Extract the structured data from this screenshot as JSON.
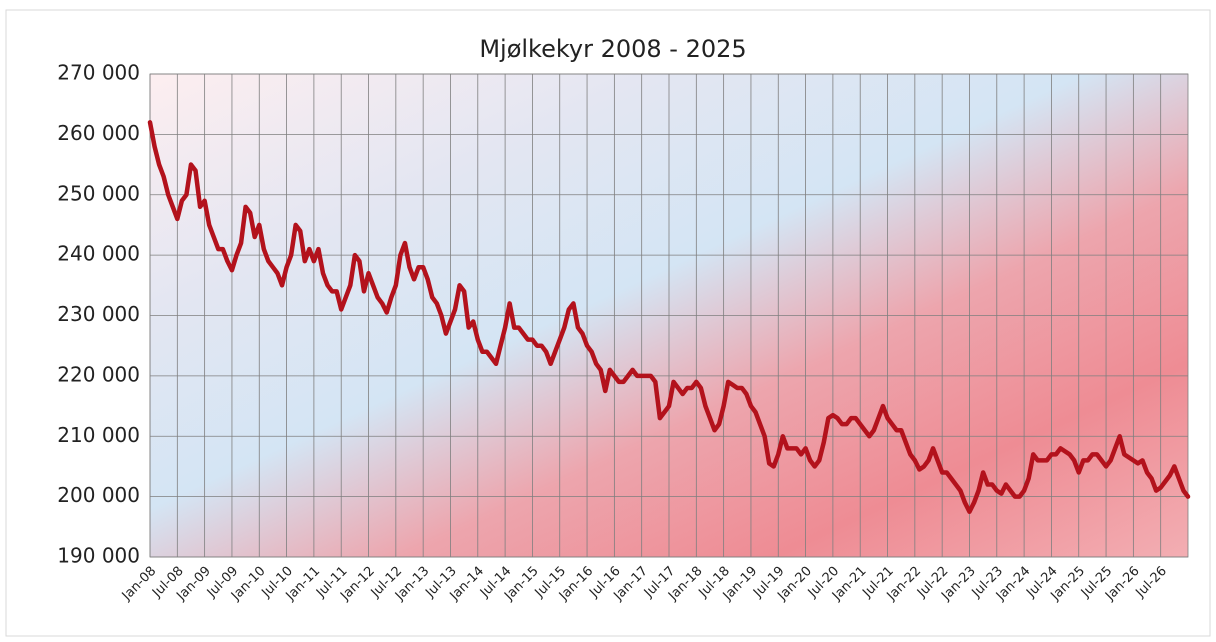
{
  "chart_data": {
    "type": "line",
    "title": "Mjølkekyr 2008 - 2025",
    "color": "#b3121c",
    "grid": true,
    "ylim": [
      190000,
      270000
    ],
    "yticks": [
      {
        "value": 190000,
        "label": "190 000"
      },
      {
        "value": 200000,
        "label": "200 000"
      },
      {
        "value": 210000,
        "label": "210 000"
      },
      {
        "value": 220000,
        "label": "220 000"
      },
      {
        "value": 230000,
        "label": "230 000"
      },
      {
        "value": 240000,
        "label": "240 000"
      },
      {
        "value": 250000,
        "label": "250 000"
      },
      {
        "value": 260000,
        "label": "260 000"
      },
      {
        "value": 270000,
        "label": "270 000"
      }
    ],
    "categories": [
      "Jan-08",
      null,
      null,
      null,
      null,
      null,
      "Jul-08",
      null,
      null,
      null,
      null,
      null,
      "Jan-09",
      null,
      null,
      null,
      null,
      null,
      "Jul-09",
      null,
      null,
      null,
      null,
      null,
      "Jan-10",
      null,
      null,
      null,
      null,
      null,
      "Jul-10",
      null,
      null,
      null,
      null,
      null,
      "Jan-11",
      null,
      null,
      null,
      null,
      null,
      "Jul-11",
      null,
      null,
      null,
      null,
      null,
      "Jan-12",
      null,
      null,
      null,
      null,
      null,
      "Jul-12",
      null,
      null,
      null,
      null,
      null,
      "Jan-13",
      null,
      null,
      null,
      null,
      null,
      "Jul-13",
      null,
      null,
      null,
      null,
      null,
      "Jan-14",
      null,
      null,
      null,
      null,
      null,
      "Jul-14",
      null,
      null,
      null,
      null,
      null,
      "Jan-15",
      null,
      null,
      null,
      null,
      null,
      "Jul-15",
      null,
      null,
      null,
      null,
      null,
      "Jan-16",
      null,
      null,
      null,
      null,
      null,
      "Jul-16",
      null,
      null,
      null,
      null,
      null,
      "Jan-17",
      null,
      null,
      null,
      null,
      null,
      "Jul-17",
      null,
      null,
      null,
      null,
      null,
      "Jan-18",
      null,
      null,
      null,
      null,
      null,
      "Jul-18",
      null,
      null,
      null,
      null,
      null,
      "Jan-19",
      null,
      null,
      null,
      null,
      null,
      "Jul-19",
      null,
      null,
      null,
      null,
      null,
      "Jan-20",
      null,
      null,
      null,
      null,
      null,
      "Jul-20",
      null,
      null,
      null,
      null,
      null,
      "Jan-21",
      null,
      null,
      null,
      null,
      null,
      "Jul-21",
      null,
      null,
      null,
      null,
      null,
      "Jan-22",
      null,
      null,
      null,
      null,
      null,
      "Jul-22",
      null,
      null,
      null,
      null,
      null,
      "Jan-23",
      null,
      null,
      null,
      null,
      null,
      "Jul-23",
      null,
      null,
      null,
      null,
      null,
      "Jan-24",
      null,
      null,
      null,
      null,
      null,
      "Jul-24",
      null,
      null,
      null,
      null,
      null,
      "Jan-25",
      null,
      null,
      null,
      null,
      null,
      "Jul-25",
      null,
      null,
      null,
      null,
      null,
      "Jan-26",
      null,
      null,
      null,
      null,
      null,
      "Jul-26",
      null,
      null,
      null,
      null,
      null,
      null
    ],
    "values": [
      262000,
      258000,
      255000,
      253000,
      250000,
      248000,
      246000,
      249000,
      250000,
      255000,
      254000,
      248000,
      249000,
      245000,
      243000,
      241000,
      241000,
      239000,
      237500,
      240000,
      242000,
      248000,
      247000,
      243000,
      245000,
      241000,
      239000,
      238000,
      237000,
      235000,
      238000,
      240000,
      245000,
      244000,
      239000,
      241000,
      239000,
      241000,
      237000,
      235000,
      234000,
      234000,
      231000,
      233000,
      235000,
      240000,
      239000,
      234000,
      237000,
      235000,
      233000,
      232000,
      230500,
      233000,
      235000,
      240000,
      242000,
      238000,
      236000,
      238000,
      238000,
      236000,
      233000,
      232000,
      230000,
      227000,
      229000,
      231000,
      235000,
      234000,
      228000,
      229000,
      226000,
      224000,
      224000,
      223000,
      222000,
      225000,
      228000,
      232000,
      228000,
      228000,
      227000,
      226000,
      226000,
      225000,
      225000,
      224000,
      222000,
      224000,
      226000,
      228000,
      231000,
      232000,
      228000,
      227000,
      225000,
      224000,
      222000,
      221000,
      217500,
      221000,
      220000,
      219000,
      219000,
      220000,
      221000,
      220000,
      220000,
      220000,
      220000,
      219000,
      213000,
      214000,
      215000,
      219000,
      218000,
      217000,
      218000,
      218000,
      219000,
      218000,
      215000,
      213000,
      211000,
      212000,
      215000,
      219000,
      218500,
      218000,
      218000,
      217000,
      215000,
      214000,
      212000,
      210000,
      205500,
      205000,
      207000,
      210000,
      208000,
      208000,
      208000,
      207000,
      208000,
      206000,
      205000,
      206000,
      209000,
      213000,
      213500,
      213000,
      212000,
      212000,
      213000,
      213000,
      212000,
      211000,
      210000,
      211000,
      213000,
      215000,
      213000,
      212000,
      211000,
      211000,
      209000,
      207000,
      206000,
      204500,
      205000,
      206000,
      208000,
      206000,
      204000,
      204000,
      203000,
      202000,
      201000,
      199000,
      197500,
      199000,
      201000,
      204000,
      202000,
      202000,
      201000,
      200500,
      202000,
      201000,
      200000,
      200000,
      201000,
      203000,
      207000,
      206000,
      206000,
      206000,
      207000,
      207000,
      208000,
      207500,
      207000,
      206000,
      204000,
      206000,
      206000,
      207000,
      207000,
      206000,
      205000,
      206000,
      208000,
      210000,
      207000,
      206500,
      206000,
      205500,
      206000,
      204000,
      203000,
      201000,
      201500,
      202500,
      203500,
      205000,
      203000,
      201000,
      200000
    ]
  }
}
